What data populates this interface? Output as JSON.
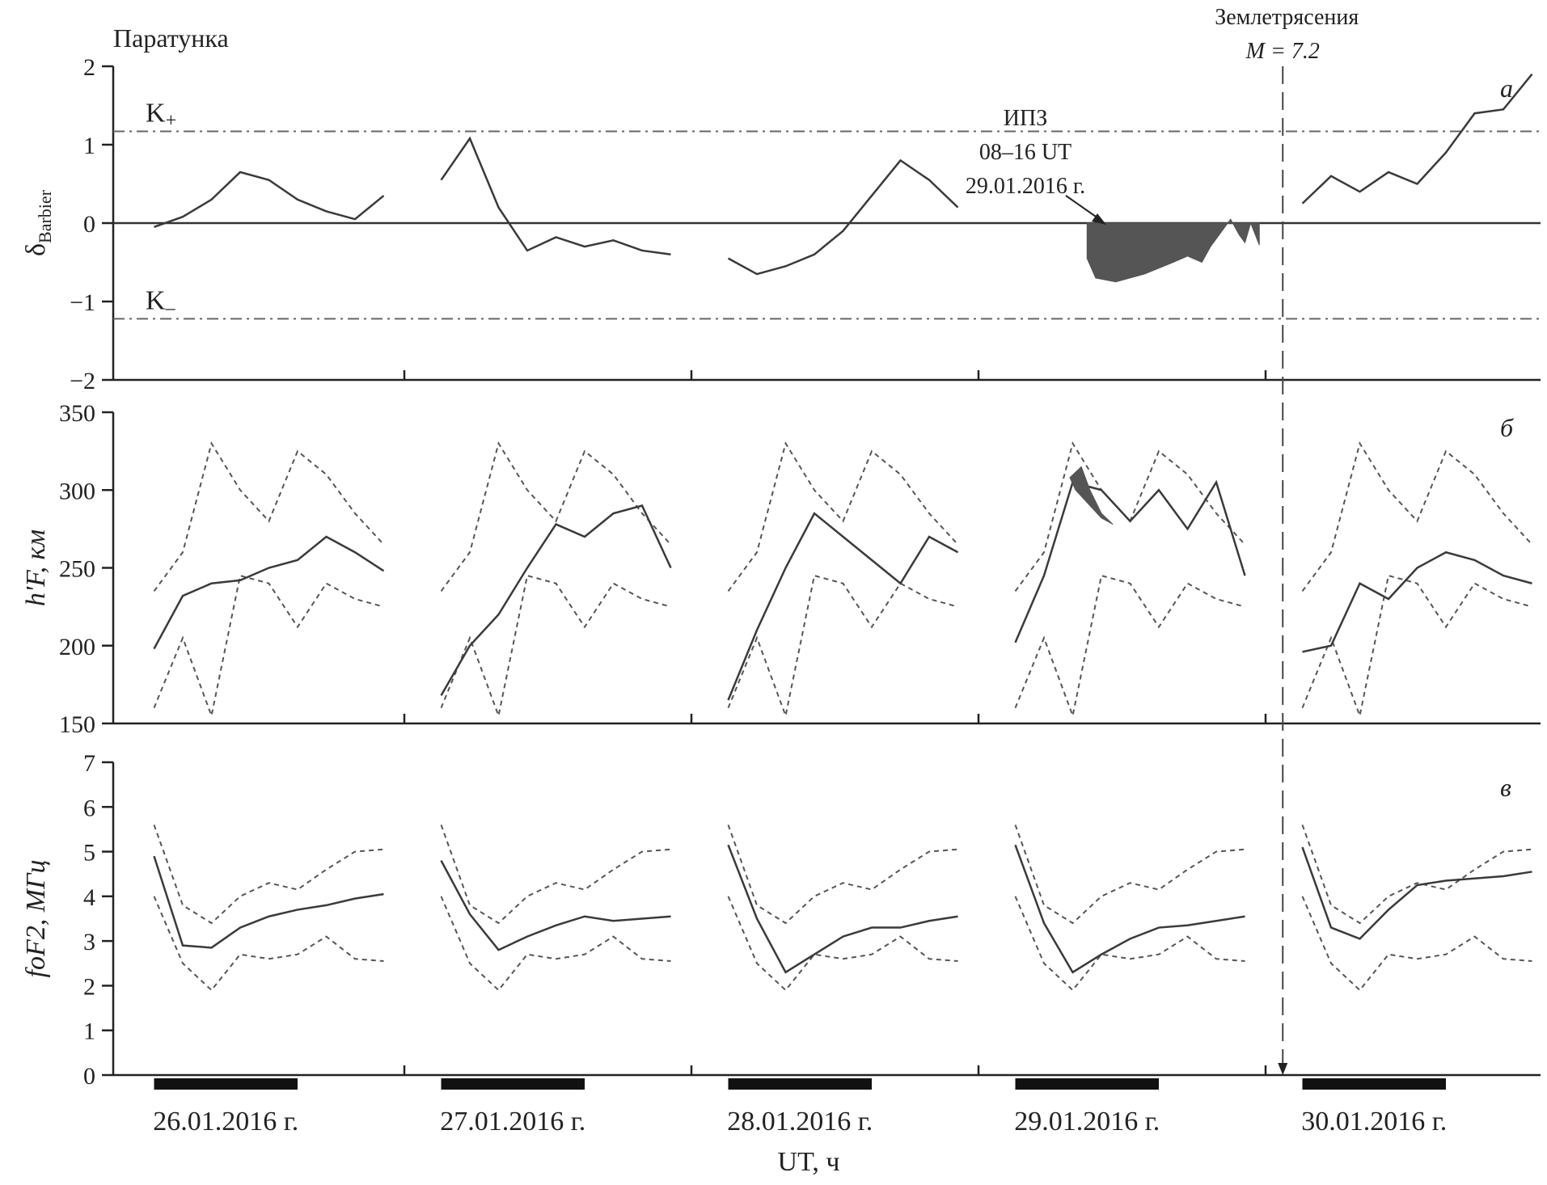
{
  "figure": {
    "station": "Паратунка",
    "x_axis_label": "UT, ч",
    "days": [
      {
        "label": "26.01.2016 г."
      },
      {
        "label": "27.01.2016 г."
      },
      {
        "label": "28.01.2016 г."
      },
      {
        "label": "29.01.2016 г."
      },
      {
        "label": "30.01.2016 г."
      }
    ],
    "earthquake": {
      "line1": "Землетрясения",
      "line2": "M = 7.2",
      "day_position": 4.15
    },
    "ipz": {
      "line1": "ИПЗ",
      "line2": "08–16 UT",
      "line3": "29.01.2016 г."
    },
    "colors": {
      "line": "#3a3a3a",
      "fill": "#555555",
      "dashed": "#555555"
    }
  },
  "chart_data": [
    {
      "type": "line",
      "panel": "а",
      "ylabel_main": "δ",
      "ylabel_sub": "Barbier",
      "ylim": [
        -2,
        2
      ],
      "yticks": [
        2,
        1,
        0,
        -1,
        -2
      ],
      "ytick_labels": [
        "2",
        "1",
        "0",
        "−1",
        "−2"
      ],
      "thresholds": [
        {
          "label_main": "K",
          "label_sub": "+",
          "value": 1.17
        },
        {
          "label_main": "K",
          "label_sub": "–",
          "value": -1.22
        }
      ],
      "zero_line": true,
      "daily_x": [
        0.1,
        0.2,
        0.3,
        0.4,
        0.5,
        0.6,
        0.7,
        0.8,
        0.9
      ],
      "series": [
        {
          "day": 0,
          "values": [
            -0.05,
            0.08,
            0.3,
            0.65,
            0.55,
            0.3,
            0.15,
            0.05,
            0.35
          ]
        },
        {
          "day": 1,
          "values": [
            0.55,
            1.08,
            0.2,
            -0.35,
            -0.18,
            -0.3,
            -0.22,
            -0.35,
            -0.4
          ]
        },
        {
          "day": 2,
          "values": [
            -0.45,
            -0.65,
            -0.55,
            -0.4,
            -0.1,
            0.35,
            0.8,
            0.55,
            0.2
          ]
        },
        {
          "day": 4,
          "values": [
            0.25,
            0.6,
            0.4,
            0.65,
            0.5,
            0.9,
            1.4,
            1.45,
            1.9
          ]
        }
      ],
      "filled_anomaly": {
        "day": 3,
        "x": [
          0.35,
          0.38,
          0.45,
          0.55,
          0.65,
          0.7,
          0.75,
          0.78,
          0.8,
          0.85,
          0.88,
          0.9,
          0.92,
          0.95
        ],
        "values": [
          -0.45,
          -0.7,
          -0.75,
          -0.65,
          -0.5,
          -0.42,
          -0.5,
          -0.3,
          -0.2,
          0.05,
          -0.15,
          -0.25,
          0.0,
          -0.28
        ]
      }
    },
    {
      "type": "line",
      "panel": "б",
      "ylabel": "h'F, км",
      "ylim": [
        150,
        350
      ],
      "yticks": [
        350,
        300,
        250,
        200,
        150
      ],
      "ytick_labels": [
        "350",
        "300",
        "250",
        "200",
        "150"
      ],
      "daily_x": [
        0.1,
        0.2,
        0.3,
        0.4,
        0.5,
        0.6,
        0.7,
        0.8,
        0.9
      ],
      "upper_bound": [
        235,
        260,
        330,
        300,
        280,
        325,
        310,
        285,
        265
      ],
      "lower_bound": [
        160,
        205,
        155,
        245,
        240,
        212,
        240,
        230,
        225
      ],
      "series": [
        {
          "day": 0,
          "values": [
            198,
            232,
            240,
            242,
            250,
            255,
            270,
            260,
            248
          ]
        },
        {
          "day": 1,
          "values": [
            168,
            200,
            220,
            250,
            278,
            270,
            285,
            290,
            250
          ]
        },
        {
          "day": 2,
          "values": [
            165,
            210,
            250,
            285,
            270,
            255,
            240,
            270,
            260
          ]
        },
        {
          "day": 3,
          "values": [
            202,
            245,
            305,
            300,
            280,
            300,
            275,
            305,
            245
          ]
        },
        {
          "day": 4,
          "values": [
            196,
            200,
            240,
            230,
            250,
            260,
            255,
            245,
            240
          ]
        }
      ],
      "filled_anomaly": {
        "day": 3,
        "x": [
          0.29,
          0.33,
          0.36,
          0.4,
          0.44,
          0.4,
          0.36,
          0.31
        ],
        "values": [
          308,
          315,
          300,
          285,
          278,
          282,
          290,
          300
        ]
      }
    },
    {
      "type": "line",
      "panel": "в",
      "ylabel": "foF2, МГц",
      "ylim": [
        0,
        7
      ],
      "yticks": [
        7,
        6,
        5,
        4,
        3,
        2,
        1,
        0
      ],
      "ytick_labels": [
        "7",
        "6",
        "5",
        "4",
        "3",
        "2",
        "1",
        "0"
      ],
      "daily_x": [
        0.1,
        0.2,
        0.3,
        0.4,
        0.5,
        0.6,
        0.7,
        0.8,
        0.9
      ],
      "upper_bound": [
        5.6,
        3.8,
        3.4,
        4.0,
        4.3,
        4.15,
        4.6,
        5.0,
        5.05
      ],
      "lower_bound": [
        4.0,
        2.5,
        1.9,
        2.7,
        2.6,
        2.7,
        3.1,
        2.6,
        2.55
      ],
      "series": [
        {
          "day": 0,
          "values": [
            4.9,
            2.9,
            2.85,
            3.3,
            3.55,
            3.7,
            3.8,
            3.95,
            4.05
          ]
        },
        {
          "day": 1,
          "values": [
            4.8,
            3.6,
            2.8,
            3.1,
            3.35,
            3.55,
            3.45,
            3.5,
            3.55
          ]
        },
        {
          "day": 2,
          "values": [
            5.15,
            3.5,
            2.3,
            2.7,
            3.1,
            3.3,
            3.3,
            3.45,
            3.55
          ]
        },
        {
          "day": 3,
          "values": [
            5.15,
            3.4,
            2.3,
            2.7,
            3.05,
            3.3,
            3.35,
            3.45,
            3.55
          ]
        },
        {
          "day": 4,
          "values": [
            5.1,
            3.3,
            3.05,
            3.7,
            4.25,
            4.35,
            4.4,
            4.45,
            4.55
          ]
        }
      ]
    }
  ]
}
